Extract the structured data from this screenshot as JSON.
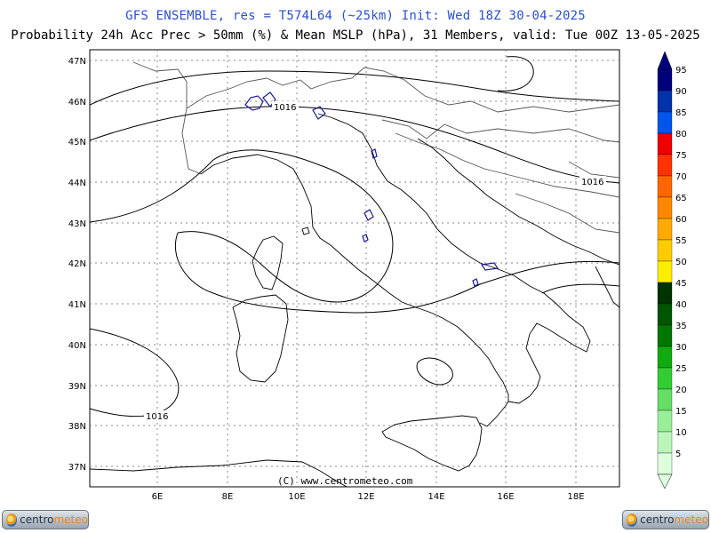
{
  "header": {
    "title_line1": "GFS ENSEMBLE, res = T574L64 (~25km)   Init: Wed 18Z 30-04-2025",
    "title_line2": "Probability 24h Acc Prec > 50mm (%) & Mean MSLP (hPa), 31 Members, valid: Tue 00Z 13-05-2025"
  },
  "map": {
    "lat_labels": [
      "47N",
      "46N",
      "45N",
      "44N",
      "43N",
      "42N",
      "41N",
      "40N",
      "39N",
      "38N",
      "37N"
    ],
    "lon_labels": [
      "6E",
      "8E",
      "10E",
      "12E",
      "14E",
      "16E",
      "18E"
    ],
    "isobar_labels": [
      "1016",
      "1016",
      "1016"
    ],
    "copyright": "(C) www.centrometeo.com",
    "colors": {
      "isobar": "#000000",
      "coastline": "#000000",
      "border": "#555555",
      "grid": "#777777",
      "prob_contour": "#1a1a9a"
    }
  },
  "colorbar": {
    "levels": [
      "95",
      "90",
      "85",
      "80",
      "75",
      "70",
      "65",
      "60",
      "55",
      "50",
      "45",
      "40",
      "35",
      "30",
      "25",
      "20",
      "15",
      "10",
      "5"
    ],
    "colors": [
      "#00007a",
      "#0033aa",
      "#0055ee",
      "#ee0000",
      "#ff3300",
      "#ff6600",
      "#ff8800",
      "#ffaa00",
      "#ffcc00",
      "#ffee00",
      "#003300",
      "#005500",
      "#007700",
      "#11aa11",
      "#33cc33",
      "#66dd66",
      "#99ee99",
      "#bbf5bb",
      "#ddffdd"
    ]
  },
  "logos": {
    "left": {
      "brand_a": "centro",
      "brand_b": "meteo"
    },
    "right": {
      "brand_a": "centro",
      "brand_b": "meteo"
    }
  }
}
